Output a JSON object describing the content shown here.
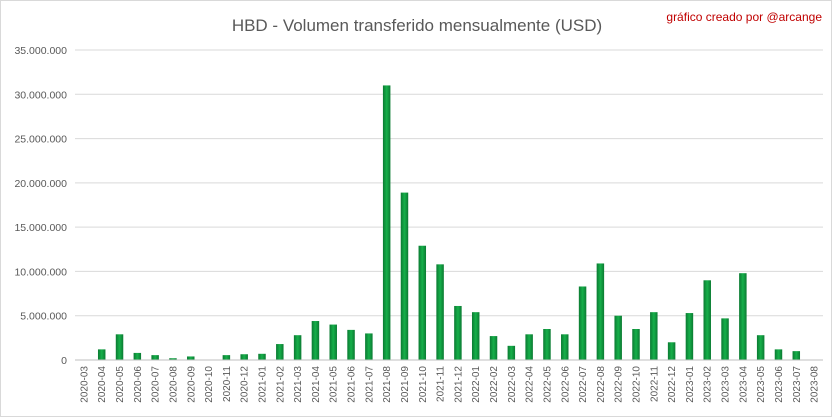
{
  "chart_data": {
    "type": "bar",
    "title": "HBD - Volumen transferido mensualmente (USD)",
    "credit": "gráfico creado por @arcange",
    "xlabel": "",
    "ylabel": "",
    "ylim": [
      0,
      35000000
    ],
    "y_ticks": [
      0,
      5000000,
      10000000,
      15000000,
      20000000,
      25000000,
      30000000,
      35000000
    ],
    "y_tick_labels": [
      "0",
      "5.000.000",
      "10.000.000",
      "15.000.000",
      "20.000.000",
      "25.000.000",
      "30.000.000",
      "35.000.000"
    ],
    "grid": true,
    "legend": "none",
    "bar_color": "#00a03c",
    "categories": [
      "2020-03",
      "2020-04",
      "2020-05",
      "2020-06",
      "2020-07",
      "2020-08",
      "2020-09",
      "2020-10",
      "2020-11",
      "2020-12",
      "2021-01",
      "2021-02",
      "2021-03",
      "2021-04",
      "2021-05",
      "2021-06",
      "2021-07",
      "2021-08",
      "2021-09",
      "2021-10",
      "2021-11",
      "2021-12",
      "2022-01",
      "2022-02",
      "2022-03",
      "2022-04",
      "2022-05",
      "2022-06",
      "2022-07",
      "2022-08",
      "2022-09",
      "2022-10",
      "2022-11",
      "2022-12",
      "2023-01",
      "2023-02",
      "2023-03",
      "2023-04",
      "2023-05",
      "2023-06",
      "2023-07",
      "2023-08"
    ],
    "values": [
      0,
      1200000,
      2900000,
      800000,
      550000,
      200000,
      400000,
      50000,
      550000,
      650000,
      700000,
      1800000,
      2800000,
      4400000,
      4000000,
      3400000,
      3000000,
      31000000,
      18900000,
      12900000,
      10800000,
      6100000,
      5400000,
      2700000,
      1600000,
      2900000,
      3500000,
      2900000,
      8300000,
      10900000,
      5000000,
      3500000,
      5400000,
      2000000,
      5300000,
      9000000,
      4700000,
      9800000,
      2800000,
      1200000,
      1000000,
      0
    ]
  }
}
